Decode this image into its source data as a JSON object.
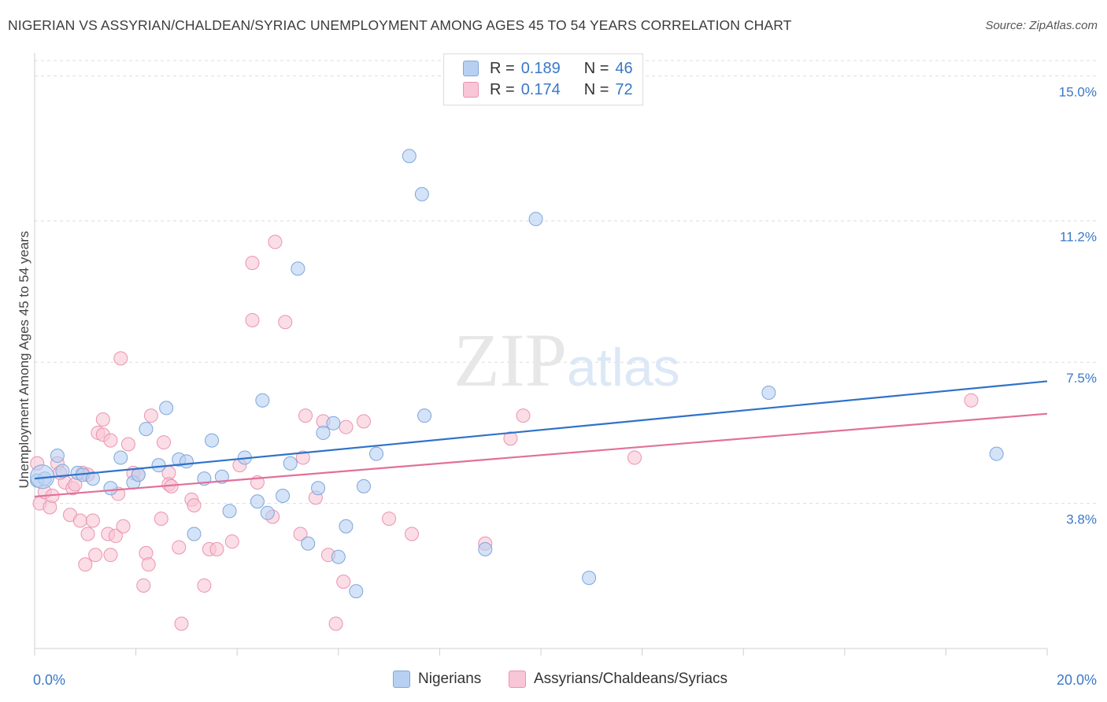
{
  "title": "NIGERIAN VS ASSYRIAN/CHALDEAN/SYRIAC UNEMPLOYMENT AMONG AGES 45 TO 54 YEARS CORRELATION CHART",
  "source": "Source: ZipAtlas.com",
  "watermark": {
    "zip": "ZIP",
    "atlas": "atlas"
  },
  "legend": {
    "rows": [
      {
        "r_label": "R =",
        "r_value": "0.189",
        "n_label": "N =",
        "n_value": "46"
      },
      {
        "r_label": "R =",
        "r_value": "0.174",
        "n_label": "N =",
        "n_value": "72"
      }
    ]
  },
  "bottom_legend": {
    "series1": "Nigerians",
    "series2": "Assyrians/Chaldeans/Syriacs"
  },
  "colors": {
    "blue_fill": "#b7d0f2",
    "blue_stroke": "#7ea6dc",
    "blue_line": "#2f72c9",
    "pink_fill": "#f8c6d6",
    "pink_stroke": "#eb93b0",
    "pink_line": "#e2709a",
    "axis_label": "#3a78c7",
    "grid": "#dddddd"
  },
  "chart_data": {
    "type": "scatter",
    "title": "NIGERIAN VS ASSYRIAN/CHALDEAN/SYRIAC UNEMPLOYMENT AMONG AGES 45 TO 54 YEARS CORRELATION CHART",
    "xlabel": "",
    "ylabel": "Unemployment Among Ages 45 to 54 years",
    "xlim": [
      0,
      20
    ],
    "ylim": [
      0,
      15.4
    ],
    "x_tick_labels": [
      {
        "value": 0,
        "label": "0.0%"
      },
      {
        "value": 20,
        "label": "20.0%"
      }
    ],
    "y_ticks": [
      {
        "value": 3.8,
        "label": "3.8%"
      },
      {
        "value": 7.5,
        "label": "7.5%"
      },
      {
        "value": 11.2,
        "label": "11.2%"
      },
      {
        "value": 15.0,
        "label": "15.0%"
      }
    ],
    "series": [
      {
        "name": "Nigerians",
        "R": 0.189,
        "N": 46,
        "trend": {
          "x0": 0,
          "y0": 4.45,
          "x1": 20,
          "y1": 7.0
        },
        "points": [
          [
            0.05,
            4.4
          ],
          [
            0.2,
            4.45
          ],
          [
            0.45,
            5.05
          ],
          [
            0.55,
            4.65
          ],
          [
            0.85,
            4.6
          ],
          [
            0.95,
            4.55
          ],
          [
            1.15,
            4.45
          ],
          [
            1.5,
            4.2
          ],
          [
            1.7,
            5.0
          ],
          [
            1.95,
            4.35
          ],
          [
            2.05,
            4.55
          ],
          [
            2.2,
            5.75
          ],
          [
            2.45,
            4.8
          ],
          [
            2.6,
            6.3
          ],
          [
            2.85,
            4.95
          ],
          [
            3.0,
            4.9
          ],
          [
            3.15,
            3.0
          ],
          [
            3.35,
            4.45
          ],
          [
            3.5,
            5.45
          ],
          [
            3.7,
            4.5
          ],
          [
            3.85,
            3.6
          ],
          [
            4.15,
            5.0
          ],
          [
            4.4,
            3.85
          ],
          [
            4.5,
            6.5
          ],
          [
            4.6,
            3.55
          ],
          [
            4.9,
            4.0
          ],
          [
            5.05,
            4.85
          ],
          [
            5.2,
            9.95
          ],
          [
            5.4,
            2.75
          ],
          [
            5.6,
            4.2
          ],
          [
            5.7,
            5.65
          ],
          [
            5.9,
            5.9
          ],
          [
            6.0,
            2.4
          ],
          [
            6.15,
            3.2
          ],
          [
            6.35,
            1.5
          ],
          [
            6.5,
            4.25
          ],
          [
            6.75,
            5.1
          ],
          [
            7.4,
            12.9
          ],
          [
            7.65,
            11.9
          ],
          [
            7.7,
            6.1
          ],
          [
            8.9,
            2.6
          ],
          [
            9.9,
            11.25
          ],
          [
            10.95,
            1.85
          ],
          [
            14.5,
            6.7
          ],
          [
            19.0,
            5.1
          ],
          [
            0.15,
            4.5
          ]
        ]
      },
      {
        "name": "Assyrians/Chaldeans/Syriacs",
        "R": 0.174,
        "N": 72,
        "trend": {
          "x0": 0,
          "y0": 3.98,
          "x1": 20,
          "y1": 6.15
        },
        "points": [
          [
            0.05,
            4.85
          ],
          [
            0.1,
            3.8
          ],
          [
            0.2,
            4.1
          ],
          [
            0.3,
            3.7
          ],
          [
            0.35,
            4.0
          ],
          [
            0.45,
            4.85
          ],
          [
            0.6,
            4.35
          ],
          [
            0.7,
            3.5
          ],
          [
            0.75,
            4.2
          ],
          [
            0.8,
            4.3
          ],
          [
            0.9,
            3.35
          ],
          [
            0.95,
            4.6
          ],
          [
            1.0,
            2.2
          ],
          [
            1.05,
            3.0
          ],
          [
            1.15,
            3.35
          ],
          [
            1.2,
            2.45
          ],
          [
            1.25,
            5.65
          ],
          [
            1.35,
            5.6
          ],
          [
            1.35,
            6.0
          ],
          [
            1.45,
            3.0
          ],
          [
            1.5,
            2.45
          ],
          [
            1.5,
            5.45
          ],
          [
            1.6,
            2.95
          ],
          [
            1.65,
            4.05
          ],
          [
            1.7,
            7.6
          ],
          [
            1.75,
            3.2
          ],
          [
            1.85,
            5.35
          ],
          [
            1.95,
            4.6
          ],
          [
            2.05,
            4.55
          ],
          [
            2.15,
            1.65
          ],
          [
            2.2,
            2.5
          ],
          [
            2.25,
            2.2
          ],
          [
            2.3,
            6.1
          ],
          [
            2.5,
            3.4
          ],
          [
            2.55,
            5.4
          ],
          [
            2.65,
            4.6
          ],
          [
            2.65,
            4.3
          ],
          [
            2.85,
            2.65
          ],
          [
            2.9,
            0.65
          ],
          [
            3.1,
            3.9
          ],
          [
            3.15,
            3.75
          ],
          [
            3.35,
            1.65
          ],
          [
            3.45,
            2.6
          ],
          [
            3.6,
            2.6
          ],
          [
            3.9,
            2.8
          ],
          [
            4.05,
            4.8
          ],
          [
            4.3,
            8.6
          ],
          [
            4.3,
            10.1
          ],
          [
            4.4,
            4.35
          ],
          [
            4.7,
            3.45
          ],
          [
            4.75,
            10.65
          ],
          [
            4.95,
            8.55
          ],
          [
            5.25,
            3.0
          ],
          [
            5.35,
            6.1
          ],
          [
            5.3,
            5.0
          ],
          [
            5.55,
            3.95
          ],
          [
            5.7,
            5.95
          ],
          [
            5.8,
            2.45
          ],
          [
            5.95,
            0.65
          ],
          [
            6.1,
            1.75
          ],
          [
            6.15,
            5.8
          ],
          [
            6.5,
            5.95
          ],
          [
            7.0,
            3.4
          ],
          [
            7.45,
            3.0
          ],
          [
            8.9,
            2.75
          ],
          [
            9.4,
            5.5
          ],
          [
            9.65,
            6.1
          ],
          [
            11.85,
            5.0
          ],
          [
            18.5,
            6.5
          ],
          [
            0.5,
            4.6
          ],
          [
            1.05,
            4.55
          ],
          [
            2.7,
            4.25
          ]
        ]
      }
    ]
  }
}
